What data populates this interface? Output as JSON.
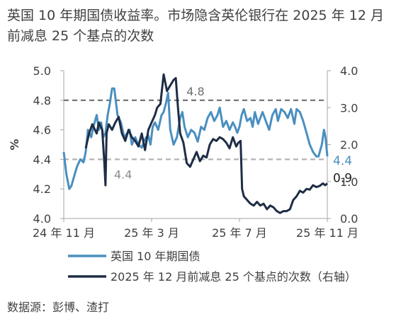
{
  "title": "英国 10 年期国债收益率。市场隐含英伦银行在 2025 年 12 月前减息 25 个基点的次数",
  "source": "数据源：彭博、渣打",
  "colors": {
    "gilt": "#4a8fc0",
    "cuts": "#1e2d45",
    "ref_dark": "#6f6f6f",
    "ref_light": "#b3b3b3",
    "axis": "#a6a6a6"
  },
  "chart_data": {
    "type": "line",
    "ylabel": "%",
    "ylim": [
      4.0,
      5.0
    ],
    "y2lim": [
      0.0,
      4.0
    ],
    "yticks": [
      "4.0",
      "4.2",
      "4.4",
      "4.6",
      "4.8",
      "5.0"
    ],
    "y2ticks": [
      "0.0",
      "1.0",
      "2.0",
      "3.0",
      "4.0"
    ],
    "xlim": [
      0,
      12
    ],
    "xticks": [
      {
        "x": 0,
        "label": "24 年 11 月"
      },
      {
        "x": 4,
        "label": "25 年 3 月"
      },
      {
        "x": 8,
        "label": "25 年 7 月"
      },
      {
        "x": 12,
        "label": "25 年 11 月"
      }
    ],
    "reference_lines": [
      {
        "value": 4.8,
        "label": "4.8",
        "style": "dark"
      },
      {
        "value": 4.4,
        "label": "4.4",
        "style": "light"
      }
    ],
    "end_labels": [
      {
        "series": 0,
        "label": "4.4"
      },
      {
        "series": 1,
        "label": "0.9"
      }
    ],
    "legend_position": "bottom",
    "series": [
      {
        "name": "英国 10 年期国债",
        "axis": "left",
        "x": [
          0,
          0.12,
          0.25,
          0.35,
          0.5,
          0.6,
          0.75,
          0.9,
          1.0,
          1.1,
          1.25,
          1.35,
          1.5,
          1.6,
          1.7,
          1.8,
          1.9,
          2.0,
          2.1,
          2.2,
          2.3,
          2.45,
          2.6,
          2.75,
          2.9,
          3.0,
          3.1,
          3.25,
          3.4,
          3.55,
          3.65,
          3.75,
          3.85,
          3.95,
          4.05,
          4.15,
          4.3,
          4.45,
          4.55,
          4.65,
          4.75,
          4.85,
          5.0,
          5.15,
          5.3,
          5.4,
          5.5,
          5.65,
          5.8,
          5.95,
          6.1,
          6.25,
          6.4,
          6.55,
          6.7,
          6.85,
          7.0,
          7.1,
          7.25,
          7.4,
          7.55,
          7.7,
          7.8,
          7.9,
          8.0,
          8.1,
          8.2,
          8.35,
          8.5,
          8.6,
          8.7,
          8.85,
          8.95,
          9.05,
          9.2,
          9.35,
          9.5,
          9.65,
          9.75,
          9.9,
          10.05,
          10.2,
          10.35,
          10.5,
          10.6,
          10.75,
          10.9,
          11.05,
          11.2,
          11.35,
          11.5,
          11.6,
          11.75,
          11.85,
          11.92,
          12.0
        ],
        "values": [
          4.45,
          4.3,
          4.2,
          4.22,
          4.3,
          4.35,
          4.4,
          4.38,
          4.45,
          4.6,
          4.55,
          4.62,
          4.7,
          4.6,
          4.65,
          4.55,
          4.58,
          4.7,
          4.78,
          4.88,
          4.88,
          4.7,
          4.65,
          4.55,
          4.58,
          4.6,
          4.5,
          4.55,
          4.5,
          4.48,
          4.52,
          4.55,
          4.56,
          4.5,
          4.62,
          4.65,
          4.6,
          4.7,
          4.72,
          4.78,
          4.85,
          4.6,
          4.5,
          4.55,
          4.68,
          4.72,
          4.62,
          4.55,
          4.6,
          4.58,
          4.52,
          4.62,
          4.6,
          4.68,
          4.72,
          4.66,
          4.7,
          4.75,
          4.62,
          4.66,
          4.6,
          4.65,
          4.62,
          4.58,
          4.62,
          4.7,
          4.74,
          4.66,
          4.68,
          4.62,
          4.72,
          4.64,
          4.68,
          4.72,
          4.66,
          4.6,
          4.7,
          4.74,
          4.66,
          4.74,
          4.72,
          4.68,
          4.74,
          4.64,
          4.74,
          4.72,
          4.66,
          4.58,
          4.5,
          4.45,
          4.42,
          4.42,
          4.5,
          4.6,
          4.55,
          4.42
        ]
      },
      {
        "name": "2025 年 12 月前减息 25 个基点的次数（右轴）",
        "axis": "right",
        "x": [
          1.0,
          1.15,
          1.3,
          1.5,
          1.6,
          1.75,
          1.85,
          1.9,
          1.95,
          2.05,
          2.2,
          2.35,
          2.5,
          2.65,
          2.8,
          2.95,
          3.1,
          3.25,
          3.4,
          3.55,
          3.7,
          3.85,
          4.0,
          4.15,
          4.25,
          4.4,
          4.55,
          4.7,
          4.85,
          5.0,
          5.1,
          5.2,
          5.3,
          5.45,
          5.6,
          5.75,
          5.9,
          6.05,
          6.2,
          6.35,
          6.5,
          6.65,
          6.8,
          6.95,
          7.1,
          7.25,
          7.4,
          7.55,
          7.7,
          7.85,
          7.95,
          8.05,
          8.12,
          8.2,
          8.35,
          8.5,
          8.65,
          8.8,
          8.95,
          9.1,
          9.25,
          9.4,
          9.55,
          9.7,
          9.85,
          10.0,
          10.15,
          10.3,
          10.45,
          10.6,
          10.75,
          10.9,
          11.05,
          11.2,
          11.35,
          11.5,
          11.65,
          11.8,
          11.9,
          12.0
        ],
        "values": [
          1.9,
          2.3,
          2.55,
          2.3,
          2.6,
          2.4,
          1.5,
          0.9,
          2.3,
          2.55,
          2.4,
          2.6,
          2.75,
          2.3,
          2.1,
          2.4,
          2.2,
          2.1,
          1.95,
          2.3,
          1.85,
          2.4,
          2.6,
          2.8,
          3.0,
          3.1,
          3.9,
          3.45,
          3.6,
          3.75,
          3.8,
          3.0,
          2.3,
          2.05,
          1.5,
          1.4,
          1.6,
          1.8,
          1.55,
          1.7,
          1.65,
          2.0,
          2.15,
          2.1,
          2.2,
          2.15,
          2.05,
          1.9,
          2.2,
          1.95,
          2.05,
          2.1,
          0.8,
          0.6,
          0.5,
          0.4,
          0.35,
          0.45,
          0.35,
          0.4,
          0.25,
          0.35,
          0.3,
          0.2,
          0.15,
          0.2,
          0.2,
          0.25,
          0.5,
          0.6,
          0.75,
          0.7,
          0.8,
          0.78,
          0.9,
          0.85,
          0.88,
          0.95,
          0.9,
          0.95
        ]
      }
    ]
  }
}
